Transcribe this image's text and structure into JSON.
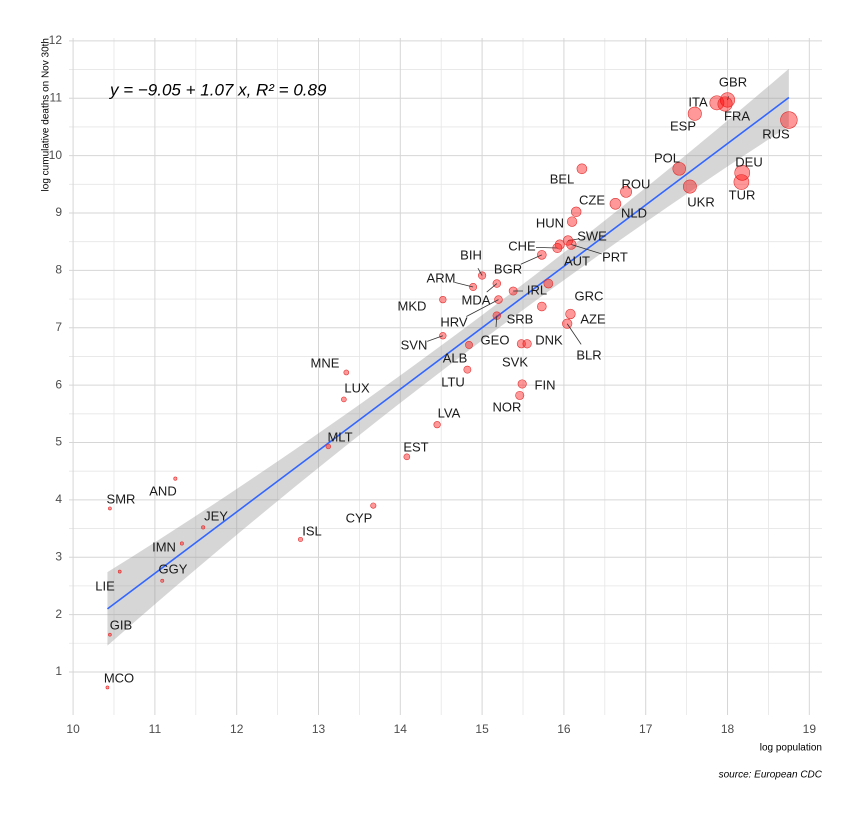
{
  "chart_data": {
    "type": "scatter",
    "annotation": "y = −9.05 + 1.07 x, R² = 0.89",
    "x_label": "log population",
    "y_label": "log cumulative deaths on Nov 30th",
    "source": "source: European CDC",
    "color": "#f8766d",
    "fit": {
      "intercept": -9.05,
      "slope": 1.07,
      "color": "#3366ff"
    },
    "xlim": [
      9.95,
      19.155
    ],
    "ylim": [
      0.25,
      12.05
    ],
    "xticks": [
      10,
      11,
      12,
      13,
      14,
      15,
      16,
      17,
      18,
      19
    ],
    "yticks": [
      1,
      2,
      3,
      4,
      5,
      6,
      7,
      8,
      9,
      10,
      11,
      12
    ],
    "grid": true,
    "labels": [
      "GBR",
      "ITA",
      "FRA",
      "ESP",
      "RUS",
      "POL",
      "DEU",
      "TUR",
      "UKR",
      "ROU",
      "NLD",
      "BEL",
      "CZE",
      "HUN",
      "SWE",
      "CHE",
      "AUT",
      "PRT",
      "BIH",
      "BGR",
      "ARM",
      "MDA",
      "IRL",
      "GRC",
      "MKD",
      "HRV",
      "SRB",
      "AZE",
      "BLR",
      "SVN",
      "GEO",
      "DNK",
      "SVK",
      "ALB",
      "LTU",
      "FIN",
      "NOR",
      "MNE",
      "LUX",
      "LVA",
      "EST",
      "MLT",
      "CYP",
      "ISL",
      "JEY",
      "IMN",
      "GGY",
      "AND",
      "SMR",
      "LIE",
      "GIB",
      "MCO"
    ],
    "x": [
      18.0,
      17.87,
      17.97,
      17.6,
      18.75,
      17.41,
      18.18,
      18.17,
      17.54,
      16.76,
      16.63,
      16.22,
      16.15,
      16.1,
      16.05,
      15.92,
      15.95,
      16.09,
      15.0,
      15.73,
      14.89,
      15.18,
      15.38,
      15.81,
      14.52,
      15.2,
      15.73,
      16.08,
      16.04,
      14.52,
      15.18,
      15.55,
      15.48,
      14.84,
      14.82,
      15.49,
      15.46,
      13.34,
      13.31,
      14.45,
      14.08,
      13.12,
      13.67,
      12.78,
      11.59,
      11.33,
      11.09,
      11.25,
      10.45,
      10.57,
      10.45,
      10.42
    ],
    "values": [
      10.97,
      10.92,
      10.9,
      10.73,
      10.62,
      9.77,
      9.7,
      9.54,
      9.46,
      9.37,
      9.16,
      9.77,
      9.02,
      8.85,
      8.52,
      8.39,
      8.45,
      8.45,
      7.91,
      8.27,
      7.71,
      7.77,
      7.64,
      7.77,
      7.49,
      7.49,
      7.37,
      7.24,
      7.07,
      6.86,
      7.21,
      6.72,
      6.72,
      6.7,
      6.27,
      6.02,
      5.82,
      6.22,
      5.75,
      5.31,
      4.75,
      4.93,
      3.9,
      3.31,
      3.52,
      3.24,
      2.59,
      4.37,
      3.85,
      2.75,
      1.65,
      0.73
    ]
  }
}
